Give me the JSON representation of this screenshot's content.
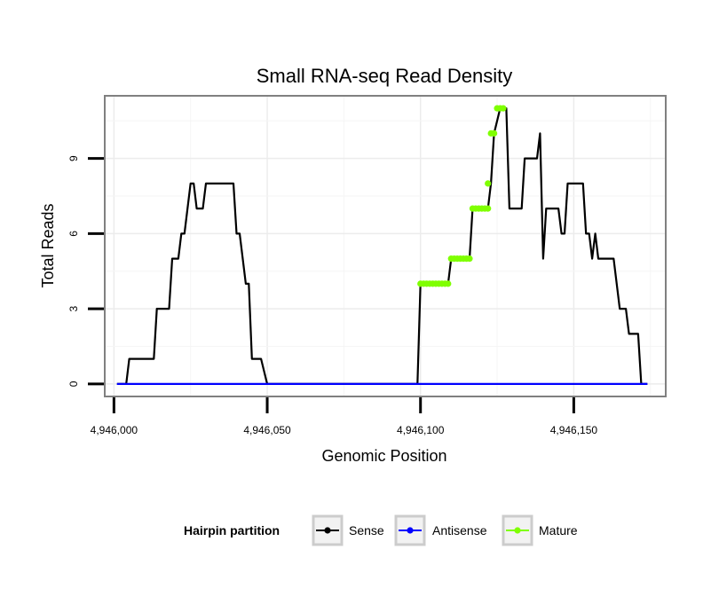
{
  "chart_data": {
    "type": "line",
    "title": "Small RNA-seq Read Density",
    "xlabel": "Genomic Position",
    "ylabel": "Total Reads",
    "xlim": [
      4945997,
      4946180
    ],
    "ylim": [
      -0.5,
      11.5
    ],
    "x_ticks": [
      4946000,
      4946050,
      4946100,
      4946150
    ],
    "x_tick_labels": [
      "4,946,000",
      "4,946,050",
      "4,946,100",
      "4,946,150"
    ],
    "y_ticks": [
      0,
      3,
      6,
      9
    ],
    "y_tick_labels": [
      "0",
      "3",
      "6",
      "9"
    ],
    "grid": true,
    "legend": {
      "title": "Hairpin partition",
      "position": "bottom",
      "entries": [
        "Sense",
        "Antisense",
        "Mature"
      ]
    },
    "series": [
      {
        "name": "Sense",
        "color": "#000000",
        "points": [
          [
            4946001,
            0
          ],
          [
            4946004,
            0
          ],
          [
            4946005,
            1
          ],
          [
            4946013,
            1
          ],
          [
            4946014,
            3
          ],
          [
            4946018,
            3
          ],
          [
            4946019,
            5
          ],
          [
            4946021,
            5
          ],
          [
            4946022,
            6
          ],
          [
            4946023,
            6
          ],
          [
            4946025,
            8
          ],
          [
            4946026,
            8
          ],
          [
            4946027,
            7
          ],
          [
            4946029,
            7
          ],
          [
            4946030,
            8
          ],
          [
            4946039,
            8
          ],
          [
            4946040,
            6
          ],
          [
            4946041,
            6
          ],
          [
            4946043,
            4
          ],
          [
            4946044,
            4
          ],
          [
            4946045,
            1
          ],
          [
            4946048,
            1
          ],
          [
            4946050,
            0
          ],
          [
            4946099,
            0
          ],
          [
            4946100,
            4
          ],
          [
            4946109,
            4
          ],
          [
            4946110,
            5
          ],
          [
            4946116,
            5
          ],
          [
            4946117,
            7
          ],
          [
            4946122,
            7
          ],
          [
            4946123,
            8
          ],
          [
            4946124,
            10
          ],
          [
            4946126,
            11
          ],
          [
            4946128,
            11
          ],
          [
            4946129,
            7
          ],
          [
            4946133,
            7
          ],
          [
            4946134,
            9
          ],
          [
            4946138,
            9
          ],
          [
            4946139,
            10
          ],
          [
            4946140,
            5
          ],
          [
            4946141,
            7
          ],
          [
            4946145,
            7
          ],
          [
            4946146,
            6
          ],
          [
            4946147,
            6
          ],
          [
            4946148,
            8
          ],
          [
            4946153,
            8
          ],
          [
            4946154,
            6
          ],
          [
            4946155,
            6
          ],
          [
            4946156,
            5
          ],
          [
            4946157,
            6
          ],
          [
            4946158,
            5
          ],
          [
            4946163,
            5
          ],
          [
            4946165,
            3
          ],
          [
            4946167,
            3
          ],
          [
            4946168,
            2
          ],
          [
            4946171,
            2
          ],
          [
            4946172,
            0
          ],
          [
            4946174,
            0
          ]
        ]
      },
      {
        "name": "Antisense",
        "color": "#0000ff",
        "points": [
          [
            4946001,
            0
          ],
          [
            4946174,
            0
          ]
        ]
      },
      {
        "name": "Mature",
        "color": "#7fff00",
        "segments": [
          {
            "x": [
              4946100,
              4946109
            ],
            "y": 4
          },
          {
            "x": [
              4946110,
              4946116
            ],
            "y": 5
          },
          {
            "x": [
              4946117,
              4946122
            ],
            "y": 7
          },
          {
            "x": [
              4946122,
              4946122
            ],
            "y": 8
          },
          {
            "x": [
              4946123,
              4946124
            ],
            "y": 10
          },
          {
            "x": [
              4946125,
              4946127
            ],
            "y": 11
          }
        ]
      }
    ]
  }
}
